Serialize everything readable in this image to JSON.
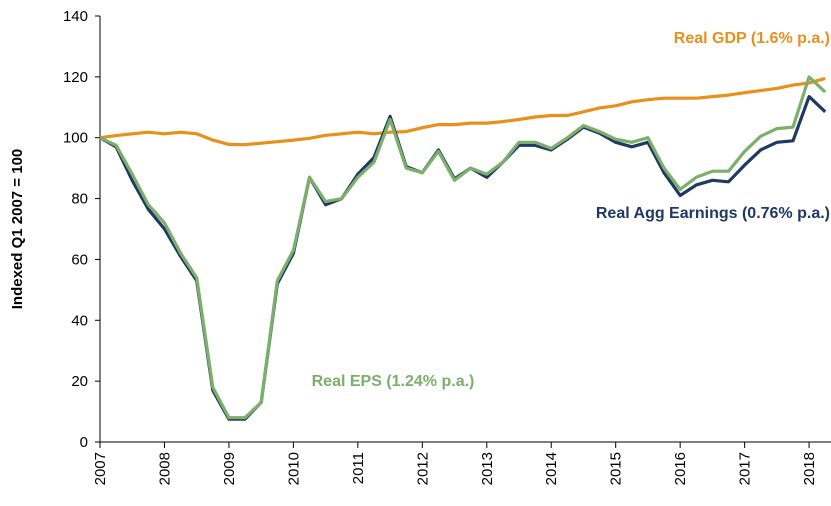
{
  "chart_data": {
    "type": "line",
    "ylabel": "Indexed Q1 2007 = 100",
    "x": [
      2007,
      2007.25,
      2007.5,
      2007.75,
      2008,
      2008.25,
      2008.5,
      2008.75,
      2009,
      2009.25,
      2009.5,
      2009.75,
      2010,
      2010.25,
      2010.5,
      2010.75,
      2011,
      2011.25,
      2011.5,
      2011.75,
      2012,
      2012.25,
      2012.5,
      2012.75,
      2013,
      2013.25,
      2013.5,
      2013.75,
      2014,
      2014.25,
      2014.5,
      2014.75,
      2015,
      2015.25,
      2015.5,
      2015.75,
      2016,
      2016.25,
      2016.5,
      2016.75,
      2017,
      2017.25,
      2017.5,
      2017.75,
      2018,
      2018.25
    ],
    "xlim": [
      2007,
      2018.34
    ],
    "xticks": [
      2007,
      2008,
      2009,
      2010,
      2011,
      2012,
      2013,
      2014,
      2015,
      2016,
      2017,
      2018
    ],
    "ylim": [
      0,
      140
    ],
    "yticks": [
      0,
      20,
      40,
      60,
      80,
      100,
      120,
      140
    ],
    "series": [
      {
        "name": "Real GDP (1.6% p.a.)",
        "color": "#e8901a",
        "values": [
          100,
          100.7,
          101.3,
          101.8,
          101.3,
          101.8,
          101.3,
          99.2,
          97.8,
          97.7,
          98.2,
          98.7,
          99.2,
          99.8,
          100.8,
          101.3,
          101.8,
          101.3,
          101.8,
          102.0,
          103.3,
          104.3,
          104.3,
          104.8,
          104.8,
          105.3,
          106.0,
          106.8,
          107.3,
          107.3,
          108.5,
          109.8,
          110.5,
          111.8,
          112.5,
          113.0,
          113.0,
          113.0,
          113.5,
          114.0,
          114.8,
          115.5,
          116.2,
          117.3,
          118.0,
          119.5
        ]
      },
      {
        "name": "Real Agg Earnings (0.76% p.a.)",
        "color": "#1f3864",
        "values": [
          100,
          97,
          86,
          76.5,
          70,
          61,
          53,
          17,
          7.5,
          7.5,
          13,
          52,
          62,
          87,
          78,
          80,
          88,
          93.5,
          107,
          90.5,
          88.5,
          96,
          86.5,
          90,
          87,
          92,
          97.5,
          97.5,
          96,
          99.5,
          103.5,
          101.5,
          98.5,
          97,
          98.5,
          88.5,
          81,
          84.5,
          86,
          85.5,
          91,
          96,
          98.5,
          99,
          113.5,
          108.5
        ]
      },
      {
        "name": "Real EPS (1.24% p.a.)",
        "color": "#7caf6a",
        "values": [
          100,
          97.5,
          88,
          78,
          72,
          62,
          54,
          18,
          8,
          8,
          13,
          53,
          63,
          87,
          79,
          80,
          87,
          92,
          106,
          90,
          88.5,
          95.5,
          86,
          90,
          88,
          92,
          98.5,
          98.5,
          96.5,
          100,
          104,
          102,
          99.5,
          98.5,
          100,
          90,
          83,
          87,
          89,
          89,
          95.5,
          100.5,
          103,
          103.5,
          120,
          115
        ]
      }
    ]
  }
}
